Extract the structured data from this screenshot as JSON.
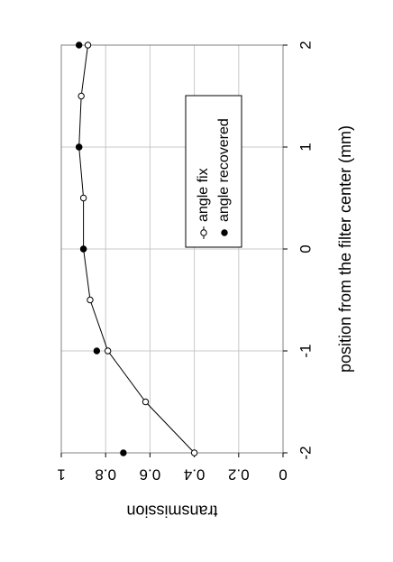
{
  "chart_data": {
    "type": "line",
    "orientation": "rotated-90-ccw",
    "title": "",
    "xlabel": "position from the filter center (mm)",
    "ylabel": "transmission",
    "xlim": [
      -2,
      2
    ],
    "ylim": [
      0,
      1
    ],
    "x_ticks": [
      "-2",
      "-1",
      "0",
      "1",
      "2"
    ],
    "y_ticks": [
      "0",
      "0.2",
      "0.4",
      "0.6",
      "0.8",
      "1"
    ],
    "grid": true,
    "legend_position": "upper-right",
    "series": [
      {
        "name": "angle fix",
        "marker": "open-circle",
        "line": true,
        "color": "#000000",
        "x": [
          -2,
          -1.5,
          -1,
          -0.5,
          0,
          0.5,
          1,
          1.5,
          2
        ],
        "y": [
          0.4,
          0.62,
          0.79,
          0.87,
          0.9,
          0.9,
          0.92,
          0.91,
          0.88
        ]
      },
      {
        "name": "angle recovered",
        "marker": "filled-circle",
        "line": false,
        "color": "#000000",
        "x": [
          -2,
          -1,
          0,
          1,
          2
        ],
        "y": [
          0.72,
          0.84,
          0.9,
          0.92,
          0.92
        ]
      }
    ]
  }
}
